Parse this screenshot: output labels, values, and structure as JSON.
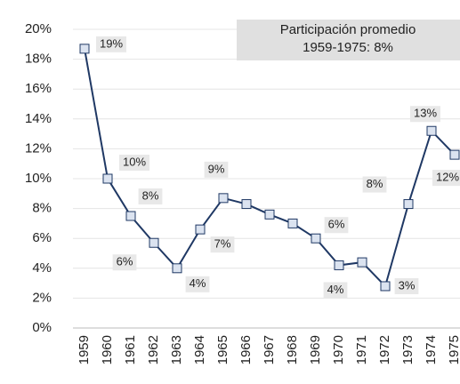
{
  "chart_data": {
    "type": "line",
    "annotation": [
      "Participación promedio",
      "1959-1975: 8%"
    ],
    "categories": [
      "1959",
      "1960",
      "1961",
      "1962",
      "1963",
      "1964",
      "1965",
      "1966",
      "1967",
      "1968",
      "1969",
      "1970",
      "1971",
      "1972",
      "1973",
      "1974",
      "1975"
    ],
    "series": [
      {
        "color": "#1f3864",
        "marker_fill": "#dbe3f0",
        "values": [
          18.7,
          10.0,
          7.5,
          5.7,
          4.0,
          6.6,
          8.7,
          8.3,
          7.6,
          7.0,
          6.0,
          4.2,
          4.4,
          2.8,
          8.3,
          13.2,
          11.6
        ],
        "value_labels": [
          "19%",
          "10%",
          "8%",
          "6%",
          "4%",
          "7%",
          "9%",
          null,
          null,
          null,
          "6%",
          "4%",
          null,
          "3%",
          "8%",
          "13%",
          "12%"
        ]
      }
    ],
    "ylim": [
      0,
      20
    ],
    "yticks": [
      {
        "value": 0,
        "label": "0%"
      },
      {
        "value": 2,
        "label": "2%"
      },
      {
        "value": 4,
        "label": "4%"
      },
      {
        "value": 6,
        "label": "6%"
      },
      {
        "value": 8,
        "label": "8%"
      },
      {
        "value": 10,
        "label": "10%"
      },
      {
        "value": 12,
        "label": "12%"
      },
      {
        "value": 14,
        "label": "14%"
      },
      {
        "value": 16,
        "label": "16%"
      },
      {
        "value": 18,
        "label": "18%"
      },
      {
        "value": 20,
        "label": "20%"
      }
    ],
    "grid": true
  }
}
